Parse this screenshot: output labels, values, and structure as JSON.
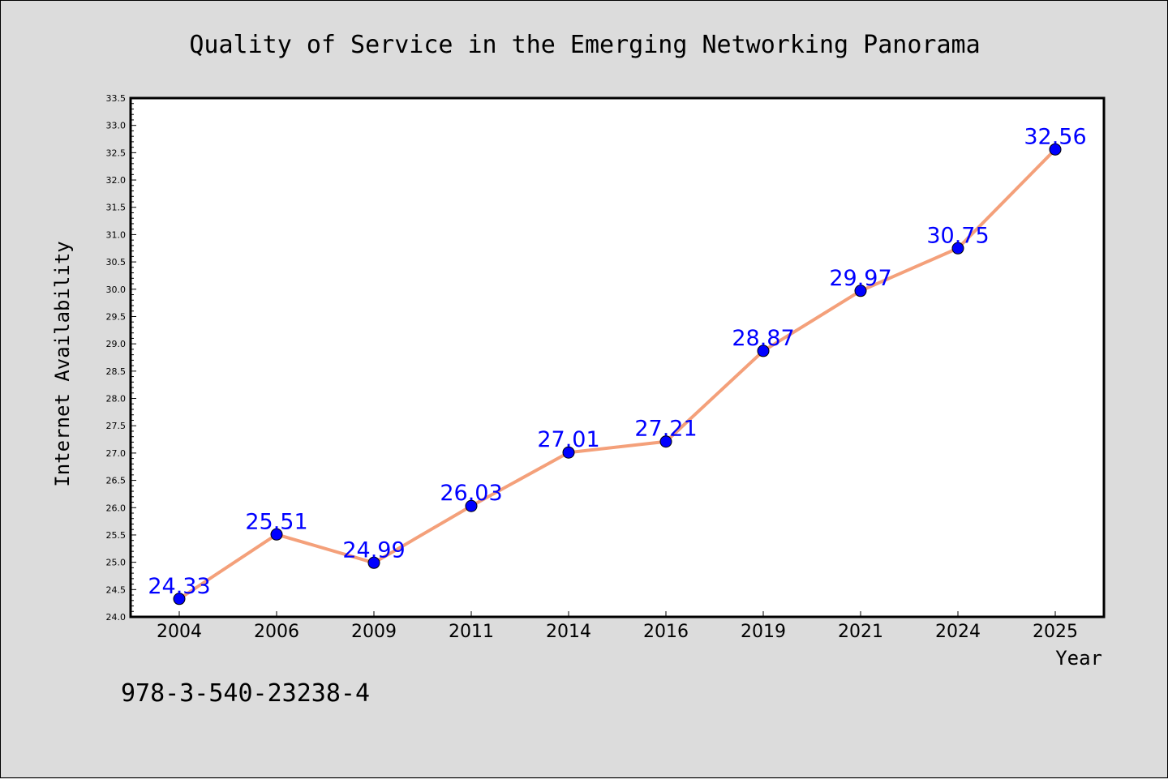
{
  "chart_data": {
    "type": "line",
    "title": "Quality of Service in the Emerging Networking Panorama",
    "xlabel": "Year",
    "ylabel": "Internet Availability",
    "categories": [
      "2004",
      "2006",
      "2009",
      "2011",
      "2014",
      "2016",
      "2019",
      "2021",
      "2024",
      "2025"
    ],
    "series": [
      {
        "values": [
          24.33,
          25.51,
          24.99,
          26.03,
          27.01,
          27.21,
          28.87,
          29.97,
          30.75,
          32.56
        ],
        "data_labels": [
          "24.33",
          "25.51",
          "24.99",
          "26.03",
          "27.01",
          "27.21",
          "28.87",
          "29.97",
          "30.75",
          "32.56"
        ]
      }
    ],
    "ylim": [
      24.0,
      33.5
    ],
    "yticks": [
      "24.0",
      "24.5",
      "25.0",
      "25.5",
      "26.0",
      "26.5",
      "27.0",
      "27.5",
      "28.0",
      "28.5",
      "29.0",
      "29.5",
      "30.0",
      "30.5",
      "31.0",
      "31.5",
      "32.0",
      "32.5",
      "33.0",
      "33.5"
    ],
    "grid": false,
    "legend": "none",
    "colors": {
      "line": "#f4a07a",
      "marker": "#0000ff",
      "data_label": "#0000ff",
      "background": "#dcdcdc",
      "plot_background": "#ffffff"
    }
  },
  "footnote": "978-3-540-23238-4"
}
